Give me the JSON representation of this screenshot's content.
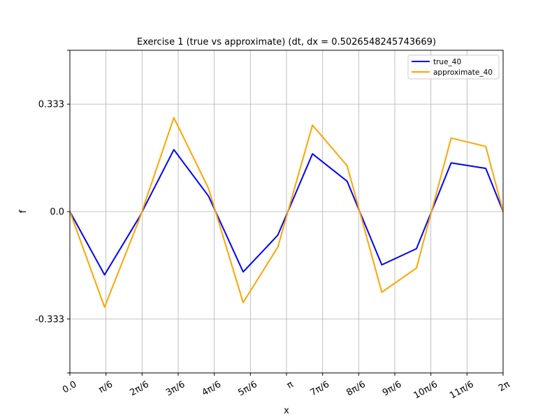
{
  "chart_data": {
    "type": "line",
    "title": "Exercise 1 (true vs approximate) (dt, dx = 0.5026548245743669)",
    "xlabel": "x",
    "ylabel": "f",
    "xlim": [
      0,
      6.283185307179586
    ],
    "ylim": [
      -0.5,
      0.5
    ],
    "xticks": [
      0,
      0.5235987755982988,
      1.0471975511965976,
      1.5707963267948966,
      2.0943951023931953,
      2.617993877991494,
      3.141592653589793,
      3.665191429188092,
      4.1887902047863905,
      4.71238898038469,
      5.235987755982989,
      5.759586531581287,
      6.283185307179586
    ],
    "xtick_labels": [
      "0.0",
      "π/6",
      "2π/6",
      "3π/6",
      "4π/6",
      "5π/6",
      "π",
      "7π/6",
      "8π/6",
      "9π/6",
      "10π/6",
      "11π/6",
      "2π"
    ],
    "yticks": [
      -0.333,
      0.0,
      0.333
    ],
    "ytick_labels": [
      "-0.333",
      "0.0",
      "0.333"
    ],
    "grid": true,
    "legend_position": "top-right",
    "x": [
      0.0,
      0.5027,
      1.0053,
      1.508,
      2.0106,
      2.5133,
      3.0159,
      3.5186,
      4.0212,
      4.5239,
      5.0265,
      5.5292,
      6.0319,
      6.2832
    ],
    "series": [
      {
        "name": "true_40",
        "color": "#0000ff",
        "values": [
          0.0,
          -0.196,
          -0.018,
          0.192,
          0.048,
          -0.187,
          -0.073,
          0.179,
          0.094,
          -0.165,
          -0.115,
          0.151,
          0.134,
          0.0
        ]
      },
      {
        "name": "approximate_40",
        "color": "#ffa500",
        "values": [
          0.0,
          -0.296,
          -0.025,
          0.291,
          0.072,
          -0.282,
          -0.11,
          0.268,
          0.142,
          -0.25,
          -0.175,
          0.228,
          0.202,
          0.0
        ]
      }
    ]
  }
}
